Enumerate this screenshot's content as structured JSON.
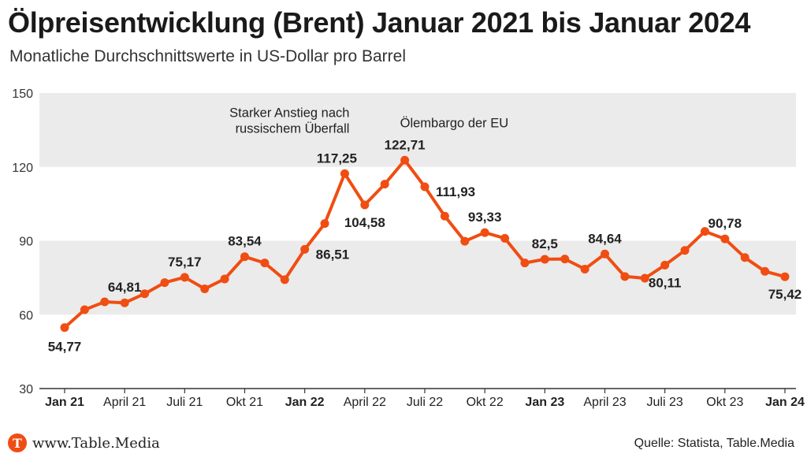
{
  "title": "Ölpreisentwicklung (Brent) Januar 2021 bis Januar 2024",
  "subtitle": "Monatliche Durchschnittswerte in US-Dollar pro Barrel",
  "footer": {
    "site": "www.Table.Media",
    "logo_letter": "T",
    "source": "Quelle: Statista, Table.Media"
  },
  "colors": {
    "line": "#f04d12",
    "band": "#ebebeb",
    "brand": "#f04d12"
  },
  "chart_data": {
    "type": "line",
    "title": "",
    "xlabel": "",
    "ylabel": "",
    "ylim": [
      30,
      150
    ],
    "yticks": [
      30,
      60,
      90,
      120,
      150
    ],
    "shaded_bands": [
      [
        60,
        90
      ],
      [
        120,
        150
      ]
    ],
    "categories": [
      "Jan 21",
      "Feb 21",
      "Mär 21",
      "April 21",
      "Mai 21",
      "Juni 21",
      "Juli 21",
      "Aug 21",
      "Sep 21",
      "Okt 21",
      "Nov 21",
      "Dez 21",
      "Jan 22",
      "Feb 22",
      "Mär 22",
      "April 22",
      "Mai 22",
      "Juni 22",
      "Juli 22",
      "Aug 22",
      "Sep 22",
      "Okt 22",
      "Nov 22",
      "Dez 22",
      "Jan 23",
      "Feb 23",
      "Mär 23",
      "April 23",
      "Mai 23",
      "Juni 23",
      "Juli 23",
      "Aug 23",
      "Sep 23",
      "Okt 23",
      "Nov 23",
      "Dez 23",
      "Jan 24"
    ],
    "x_tick_labels": [
      {
        "index": 0,
        "label": "Jan 21",
        "bold": true
      },
      {
        "index": 3,
        "label": "April 21",
        "bold": false
      },
      {
        "index": 6,
        "label": "Juli 21",
        "bold": false
      },
      {
        "index": 9,
        "label": "Okt 21",
        "bold": false
      },
      {
        "index": 12,
        "label": "Jan 22",
        "bold": true
      },
      {
        "index": 15,
        "label": "April 22",
        "bold": false
      },
      {
        "index": 18,
        "label": "Juli 22",
        "bold": false
      },
      {
        "index": 21,
        "label": "Okt 22",
        "bold": false
      },
      {
        "index": 24,
        "label": "Jan 23",
        "bold": true
      },
      {
        "index": 27,
        "label": "April 23",
        "bold": false
      },
      {
        "index": 30,
        "label": "Juli 23",
        "bold": false
      },
      {
        "index": 33,
        "label": "Okt 23",
        "bold": false
      },
      {
        "index": 36,
        "label": "Jan 24",
        "bold": true
      }
    ],
    "series": [
      {
        "values": [
          54.77,
          62.0,
          65.2,
          64.81,
          68.5,
          73.0,
          75.17,
          70.5,
          74.5,
          83.54,
          81.0,
          74.2,
          86.51,
          97.0,
          117.25,
          104.58,
          113.0,
          122.71,
          111.93,
          100.0,
          89.8,
          93.33,
          91.0,
          81.0,
          82.5,
          82.6,
          78.5,
          84.64,
          75.5,
          74.8,
          80.11,
          86.1,
          93.8,
          90.78,
          83.2,
          77.6,
          75.42
        ]
      }
    ],
    "data_labels": [
      {
        "index": 0,
        "text": "54,77",
        "pos": "below"
      },
      {
        "index": 3,
        "text": "64,81",
        "pos": "above"
      },
      {
        "index": 6,
        "text": "75,17",
        "pos": "above"
      },
      {
        "index": 9,
        "text": "83,54",
        "pos": "above"
      },
      {
        "index": 12,
        "text": "86,51",
        "pos": "right"
      },
      {
        "index": 14,
        "text": "117,25",
        "pos": "above"
      },
      {
        "index": 15,
        "text": "104,58",
        "pos": "below"
      },
      {
        "index": 17,
        "text": "122,71",
        "pos": "above"
      },
      {
        "index": 18,
        "text": "111,93",
        "pos": "right"
      },
      {
        "index": 21,
        "text": "93,33",
        "pos": "above"
      },
      {
        "index": 24,
        "text": "82,5",
        "pos": "above"
      },
      {
        "index": 27,
        "text": "84,64",
        "pos": "above"
      },
      {
        "index": 30,
        "text": "80,11",
        "pos": "below"
      },
      {
        "index": 33,
        "text": "90,78",
        "pos": "above"
      },
      {
        "index": 36,
        "text": "75,42",
        "pos": "below"
      }
    ],
    "annotations": [
      {
        "index": 14,
        "lines": [
          "Starker Anstieg nach",
          "russischem Überfall"
        ]
      },
      {
        "index": 17,
        "lines": [
          "Ölembargo der EU"
        ]
      }
    ]
  }
}
